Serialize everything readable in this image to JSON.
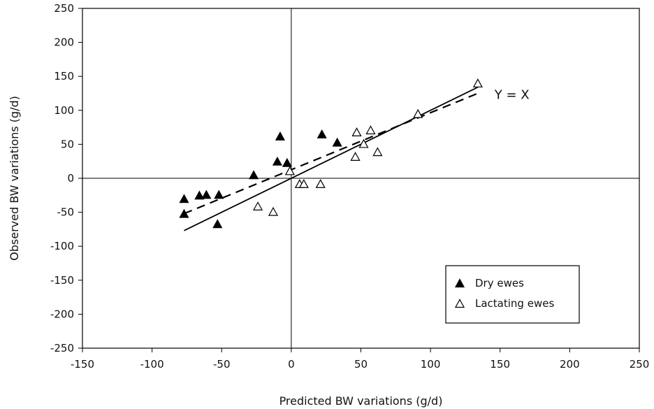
{
  "chart_data": {
    "type": "scatter",
    "title": "",
    "xlabel": "Predicted BW variations (g/d)",
    "ylabel": "Observed BW variations (g/d)",
    "xlim": [
      -150,
      250
    ],
    "ylim": [
      -250,
      250
    ],
    "x_ticks": [
      -150,
      -100,
      -50,
      0,
      50,
      100,
      150,
      200,
      250
    ],
    "y_ticks": [
      -250,
      -200,
      -150,
      -100,
      -50,
      0,
      50,
      100,
      150,
      200,
      250
    ],
    "grid": false,
    "legend_position": "bottom-right",
    "series": [
      {
        "name": "Dry ewes",
        "marker": "filled-triangle",
        "color": "#000000",
        "points": [
          {
            "x": -77,
            "y": -30
          },
          {
            "x": -77,
            "y": -52
          },
          {
            "x": -66,
            "y": -25
          },
          {
            "x": -61,
            "y": -24
          },
          {
            "x": -52,
            "y": -24
          },
          {
            "x": -53,
            "y": -67
          },
          {
            "x": -27,
            "y": 5
          },
          {
            "x": -10,
            "y": 25
          },
          {
            "x": -8,
            "y": 62
          },
          {
            "x": -3,
            "y": 23
          },
          {
            "x": 22,
            "y": 65
          },
          {
            "x": 33,
            "y": 53
          }
        ]
      },
      {
        "name": "Lactating ewes",
        "marker": "open-triangle",
        "color": "#000000",
        "points": [
          {
            "x": -24,
            "y": -41
          },
          {
            "x": -13,
            "y": -49
          },
          {
            "x": -1,
            "y": 11
          },
          {
            "x": 6,
            "y": -8
          },
          {
            "x": 9,
            "y": -8
          },
          {
            "x": 21,
            "y": -8
          },
          {
            "x": 47,
            "y": 68
          },
          {
            "x": 46,
            "y": 32
          },
          {
            "x": 52,
            "y": 51
          },
          {
            "x": 57,
            "y": 71
          },
          {
            "x": 62,
            "y": 39
          },
          {
            "x": 91,
            "y": 95
          },
          {
            "x": 134,
            "y": 140
          }
        ]
      }
    ],
    "lines": [
      {
        "label": "Y = X",
        "style": "solid",
        "from": {
          "x": -77,
          "y": -77
        },
        "to": {
          "x": 134,
          "y": 134
        }
      },
      {
        "label": "",
        "style": "dashed",
        "from": {
          "x": -77,
          "y": -52
        },
        "to": {
          "x": 134,
          "y": 125
        }
      }
    ],
    "reference_lines": {
      "x_zero": true,
      "y_zero": true
    },
    "annotations": [
      {
        "text": "Y = X",
        "x": 146,
        "y": 117
      }
    ]
  }
}
